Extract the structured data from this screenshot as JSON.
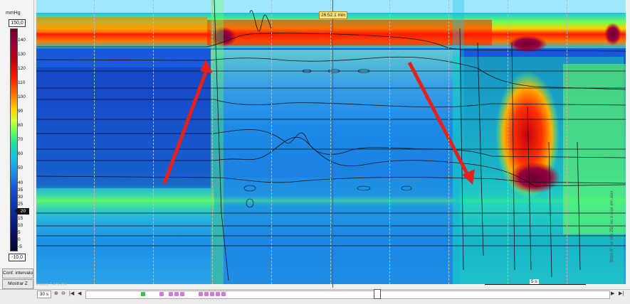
{
  "scale": {
    "unit": "mmHg",
    "max": "150,0",
    "min": "-10,0",
    "marker": "20",
    "ticks": [
      "140",
      "130",
      "120",
      "110",
      "100",
      "90",
      "80",
      "70",
      "60",
      "50",
      "40",
      "35",
      "30",
      "25",
      "15",
      "10",
      "5",
      "0",
      "-5"
    ]
  },
  "buttons": {
    "conf_intervalo": "Conf. intervalo",
    "mostrar_z": "Mostrar Z"
  },
  "cursor": {
    "label": "26:52.1 min",
    "color": "#ff1a1a"
  },
  "scale_bar": {
    "label": "5 s"
  },
  "patient": {
    "label": "Patient 7.476.204"
  },
  "bottom": {
    "time_window": "30 s"
  },
  "side_note": "3bico 8° ao sito 250 ou o aiax em aiax",
  "colors": {
    "peak": "#c40010",
    "high": "#ff7a00",
    "mid": "#16e2a2",
    "low": "#1850d8",
    "annotation": "#ff1a1a"
  }
}
